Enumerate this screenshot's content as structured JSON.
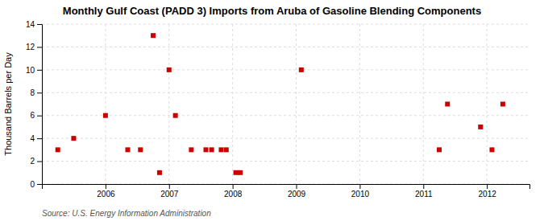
{
  "chart_data": {
    "type": "scatter",
    "title": "Monthly Gulf Coast (PADD 3) Imports from Aruba of Gasoline Blending Components",
    "ylabel": "Thousand Barrels per Day",
    "annotations": [
      "Source: U.S. Energy Information Administration"
    ],
    "x": [
      2005.25,
      2005.5,
      2006.0,
      2006.35,
      2006.55,
      2006.75,
      2006.85,
      2007.0,
      2007.1,
      2007.35,
      2007.58,
      2007.67,
      2007.82,
      2007.9,
      2008.05,
      2008.12,
      2009.08,
      2011.25,
      2011.38,
      2011.9,
      2012.08,
      2012.25
    ],
    "values": [
      3,
      4,
      6,
      3,
      3,
      13,
      1,
      10,
      6,
      3,
      3,
      3,
      3,
      3,
      1,
      1,
      10,
      3,
      7,
      5,
      3,
      7
    ],
    "color": "#cc0000",
    "marker": "square",
    "xlim": [
      2005.0,
      2012.67
    ],
    "xticks": [
      2006,
      2007,
      2008,
      2009,
      2010,
      2011,
      2012
    ],
    "ylim": [
      0,
      14
    ],
    "yticks": [
      0,
      2,
      4,
      6,
      8,
      10,
      12,
      14
    ],
    "grid": true
  }
}
